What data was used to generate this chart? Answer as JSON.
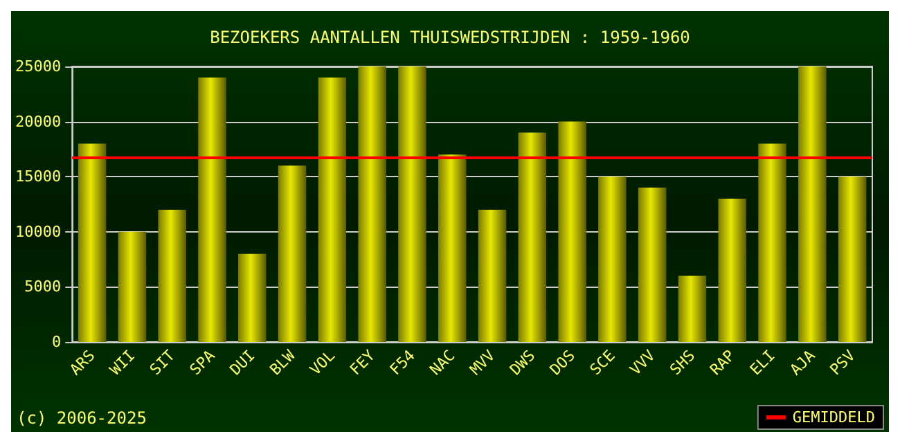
{
  "chart_data": {
    "type": "bar",
    "title": "BEZOEKERS AANTALLEN THUISWEDSTRIJDEN : 1959-1960",
    "categories": [
      "ARS",
      "WII",
      "SIT",
      "SPA",
      "DUI",
      "BLW",
      "VOL",
      "FEY",
      "F54",
      "NAC",
      "MVV",
      "DWS",
      "DOS",
      "SCE",
      "VVV",
      "SHS",
      "RAP",
      "ELI",
      "AJA",
      "PSV"
    ],
    "values": [
      18000,
      10000,
      12000,
      24000,
      8000,
      16000,
      24000,
      25000,
      25000,
      17000,
      12000,
      19000,
      20000,
      15000,
      14000,
      6000,
      13000,
      18000,
      25000,
      15000
    ],
    "color": "#e8e800",
    "ylim": [
      0,
      25000
    ],
    "yticks": [
      0,
      5000,
      10000,
      15000,
      20000,
      25000
    ],
    "grid": "y",
    "ref_lines": [
      {
        "axis": "y",
        "value": 16800,
        "label": "GEMIDDELD",
        "color": "#ff0000"
      }
    ],
    "legend": "bottom right",
    "annotations": [
      "(c) 2006-2025"
    ]
  }
}
